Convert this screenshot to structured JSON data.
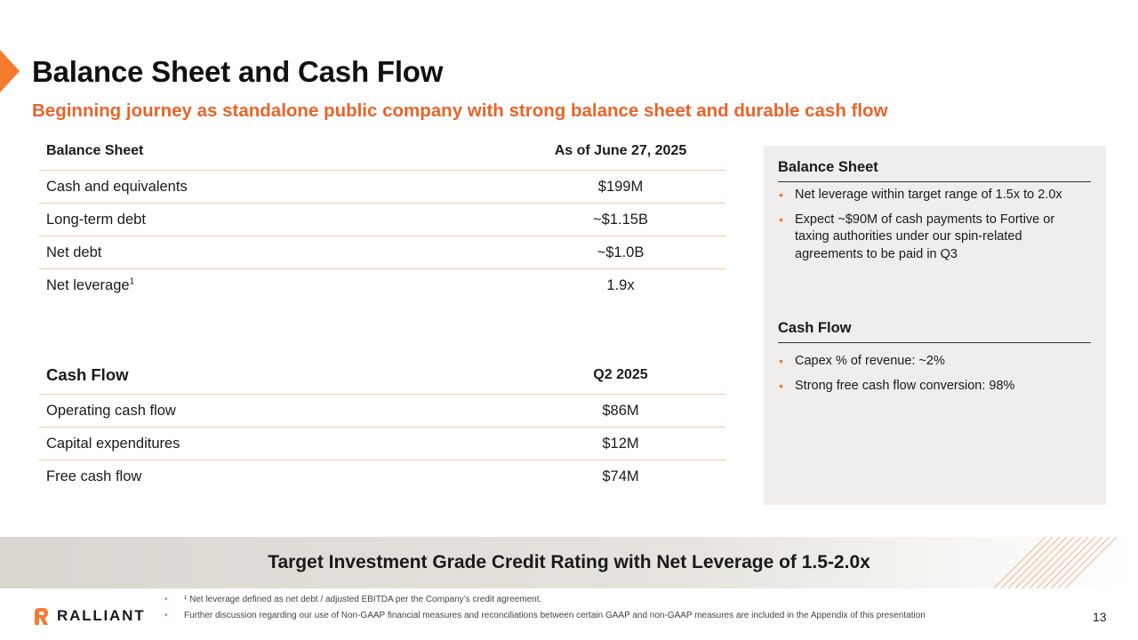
{
  "title": "Balance Sheet and Cash Flow",
  "subtitle": "Beginning journey as standalone public company with strong balance sheet and durable cash flow",
  "balance_sheet_table": {
    "header_label": "Balance Sheet",
    "header_value": "As of June 27, 2025",
    "rows": [
      {
        "label": "Cash and equivalents",
        "value": "$199M"
      },
      {
        "label": "Long-term debt",
        "value": "~$1.15B"
      },
      {
        "label": "Net debt",
        "value": "~$1.0B"
      },
      {
        "label": "Net leverage",
        "sup": "1",
        "value": "1.9x"
      }
    ]
  },
  "cash_flow_table": {
    "header_label": "Cash Flow",
    "header_value": "Q2 2025",
    "rows": [
      {
        "label": "Operating cash flow",
        "value": "$86M"
      },
      {
        "label": "Capital expenditures",
        "value": "$12M"
      },
      {
        "label": "Free cash flow",
        "value": "$74M"
      }
    ]
  },
  "side_panel": {
    "balance_sheet": {
      "title": "Balance Sheet",
      "bullets": [
        "Net leverage within target range of 1.5x to 2.0x",
        "Expect ~$90M of cash payments to Fortive or taxing authorities under our spin-related agreements to be paid in Q3"
      ]
    },
    "cash_flow": {
      "title": "Cash Flow",
      "bullets": [
        "Capex % of revenue: ~2%",
        "Strong free cash flow conversion: 98%"
      ]
    }
  },
  "banner": "Target Investment Grade Credit Rating with Net Leverage of 1.5-2.0x",
  "logo_text": "RALLIANT",
  "footnotes": [
    "¹ Net leverage defined as net debt / adjusted EBITDA per the Company’s credit agreement.",
    "Further discussion regarding our use of Non-GAAP financial measures and reconciliations between certain GAAP and non-GAAP measures are included in the Appendix of this presentation"
  ],
  "page_number": "13",
  "colors": {
    "accent": "#f47b30",
    "subtitle": "#e8642a",
    "table_rule": "#f2c8a6",
    "panel_bg": "#efeeed",
    "banner_bg": "#dad6d0"
  },
  "icons": {
    "slide_marker": "orange-chevron-icon",
    "logo_mark": "ralliant-logo-icon",
    "banner_decoration": "diagonal-stripes-icon"
  }
}
